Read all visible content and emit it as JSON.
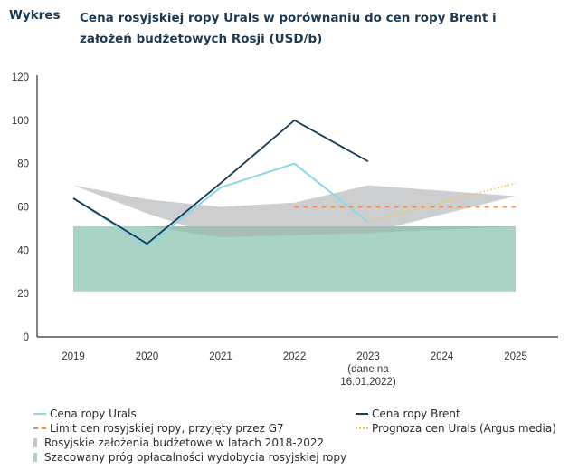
{
  "header": {
    "label": "Wykres",
    "title": "Cena rosyjskiej ropy Urals w porównaniu do cen ropy Brent i założeń budżetowych Rosji (USD/b)"
  },
  "chart_data": {
    "type": "line",
    "title": "Cena rosyjskiej ropy Urals w porównaniu do cen ropy Brent i założeń budżetowych Rosji (USD/b)",
    "xlabel": "",
    "ylabel": "",
    "categories": [
      "2019",
      "2020",
      "2021",
      "2022",
      "2023",
      "2024",
      "2025"
    ],
    "category_labels": [
      [
        "2019"
      ],
      [
        "2020"
      ],
      [
        "2021"
      ],
      [
        "2022"
      ],
      [
        "2023",
        "(dane na",
        "16.01.2022)"
      ],
      [
        "2024"
      ],
      [
        "2025"
      ]
    ],
    "ylim": [
      0,
      120
    ],
    "yticks": [
      0,
      20,
      40,
      60,
      80,
      100,
      120
    ],
    "grid": false,
    "legend_position": "bottom",
    "colors": {
      "urals": "#8fd6e6",
      "brent": "#173a52",
      "limit": "#ee8a50",
      "forecast": "#f2c35a",
      "budget": "#c4c5c7",
      "breakeven": "#a9d3c4"
    },
    "series": [
      {
        "name": "Cena ropy Urals",
        "key": "urals",
        "style": "solid",
        "x": [
          0,
          1,
          2,
          3,
          4
        ],
        "values": [
          64,
          42,
          69,
          80,
          53
        ]
      },
      {
        "name": "Cena ropy Brent",
        "key": "brent",
        "style": "solid",
        "x": [
          0,
          1,
          2,
          3,
          4
        ],
        "values": [
          64,
          43,
          71,
          100,
          81
        ]
      },
      {
        "name": "Limit cen rosyjskiej ropy, przyjęty przez G7",
        "key": "limit",
        "style": "dashed",
        "x": [
          3,
          6
        ],
        "values": [
          60,
          60
        ]
      },
      {
        "name": "Prognoza cen Urals (Argus media)",
        "key": "forecast",
        "style": "dotted",
        "x": [
          4,
          5,
          6
        ],
        "values": [
          53,
          62,
          71
        ]
      }
    ],
    "bands": [
      {
        "name": "Rosyjskie założenia budżetowe w latach 2018-2022",
        "key": "budget",
        "x": [
          0,
          1,
          2,
          3,
          4,
          6
        ],
        "upper": [
          70,
          63.5,
          60,
          62,
          70,
          65
        ],
        "lower": [
          70,
          57,
          46,
          47,
          48,
          65
        ]
      },
      {
        "name": "Szacowany próg opłacalności wydobycia rosyjskiej ropy",
        "key": "breakeven",
        "x": [
          0,
          6
        ],
        "upper": [
          51,
          51
        ],
        "lower": [
          21,
          21
        ]
      }
    ]
  },
  "legend": {
    "urals": "Cena ropy Urals",
    "brent": "Cena ropy Brent",
    "limit": "Limit cen rosyjskiej ropy, przyjęty przez G7",
    "forecast": "Prognoza cen Urals (Argus media)",
    "budget": "Rosyjskie założenia budżetowe w latach 2018-2022",
    "breakeven": "Szacowany próg opłacalności wydobycia rosyjskiej ropy"
  }
}
